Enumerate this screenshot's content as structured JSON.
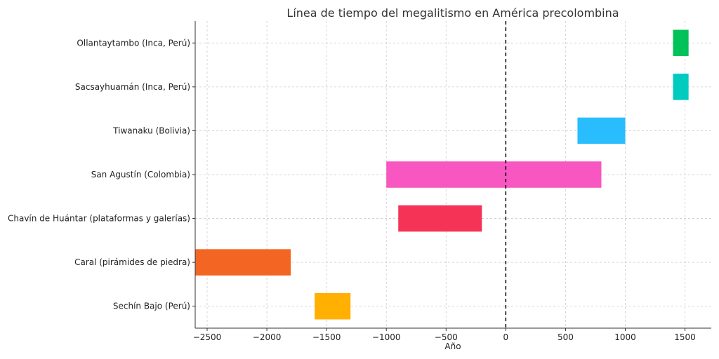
{
  "chart_data": {
    "type": "bar",
    "orientation": "horizontal",
    "title": "Línea de tiempo del megalitismo en América precolombina",
    "xlabel": "Año",
    "ylabel": "",
    "xlim": [
      -2600,
      1720
    ],
    "xticks": [
      -2500,
      -2000,
      -1500,
      -1000,
      -500,
      0,
      500,
      1000,
      1500
    ],
    "xtick_labels": [
      "−2500",
      "−2000",
      "−1500",
      "−1000",
      "−500",
      "0",
      "500",
      "1000",
      "1500"
    ],
    "grid": true,
    "reference_line": {
      "x": 0,
      "style": "dashed",
      "color": "#000000"
    },
    "bars": [
      {
        "label": "Sechín Bajo (Perú)",
        "start": -1600,
        "end": -1300,
        "color": "#FFB000"
      },
      {
        "label": "Caral (pirámides de piedra)",
        "start": -2600,
        "end": -1800,
        "color": "#F26522"
      },
      {
        "label": "Chavín de Huántar (plataformas y galerías)",
        "start": -900,
        "end": -200,
        "color": "#F43356"
      },
      {
        "label": "San Agustín (Colombia)",
        "start": -1000,
        "end": 800,
        "color": "#F857C1"
      },
      {
        "label": "Tiwanaku (Bolivia)",
        "start": 600,
        "end": 1000,
        "color": "#29BDFD"
      },
      {
        "label": "Sacsayhuamán (Inca, Perú)",
        "start": 1400,
        "end": 1530,
        "color": "#00CBBF"
      },
      {
        "label": "Ollantaytambo (Inca, Perú)",
        "start": 1400,
        "end": 1530,
        "color": "#01C159"
      }
    ]
  }
}
